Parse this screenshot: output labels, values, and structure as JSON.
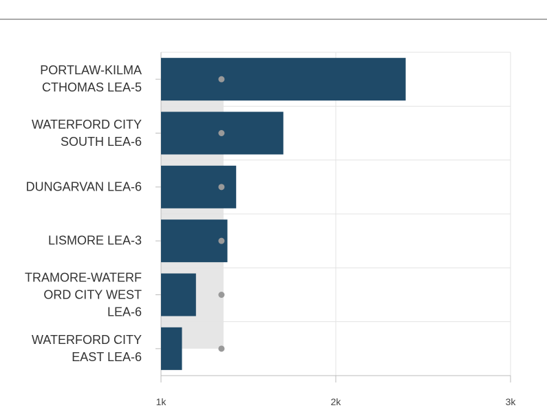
{
  "chart_data": {
    "type": "bar",
    "orientation": "horizontal",
    "categories": [
      "PORTLAW-KILMA\nCTHOMAS LEA-5",
      "WATERFORD CITY\nSOUTH LEA-6",
      "DUNGARVAN LEA-6",
      "LISMORE LEA-3",
      "TRAMORE-WATERF\nORD CITY WEST\nLEA-6",
      "WATERFORD CITY\nEAST LEA-6"
    ],
    "series": [
      {
        "color": "#1f4a68",
        "values": [
          2400,
          1700,
          1430,
          1380,
          1200,
          1120
        ]
      },
      {
        "color": "#999999",
        "marker": "dot",
        "values": [
          1346,
          1346,
          1346,
          1346,
          1346,
          1346
        ]
      }
    ],
    "reference_band": [
      1000,
      1358
    ],
    "band_color": "#e6e6e6",
    "xlim": [
      1000,
      3000
    ],
    "xticks": [
      {
        "value": 1000,
        "label": "1k"
      },
      {
        "value": 2000,
        "label": "2k"
      },
      {
        "value": 3000,
        "label": "3k"
      }
    ],
    "grid": true
  }
}
